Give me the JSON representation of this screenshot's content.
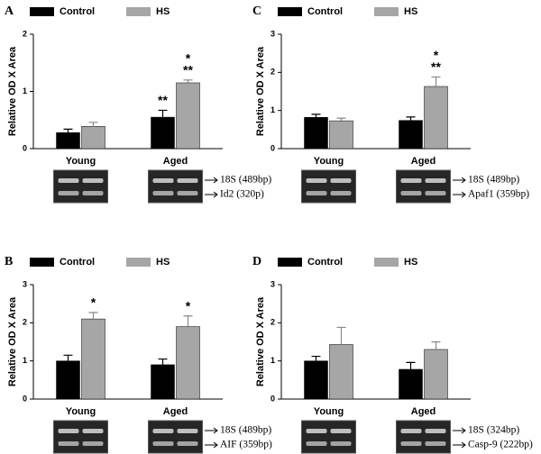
{
  "chart_data": [
    {
      "type": "bar",
      "panel": "A",
      "ylabel": "Relative OD X Area",
      "categories": [
        "Young",
        "Aged"
      ],
      "series": [
        {
          "name": "Control",
          "color": "#000000",
          "values": [
            0.28,
            0.55
          ],
          "errors": [
            0.06,
            0.12
          ],
          "annotations": [
            null,
            [
              "**"
            ]
          ]
        },
        {
          "name": "HS",
          "color": "#a6a6a6",
          "values": [
            0.39,
            1.15
          ],
          "errors": [
            0.07,
            0.05
          ],
          "annotations": [
            null,
            [
              "*",
              "**"
            ]
          ]
        }
      ],
      "ylim": [
        0,
        2
      ],
      "yticks": [
        0,
        1,
        2
      ],
      "gel_labels": [
        "18S (489bp)",
        "Id2 (320p)"
      ]
    },
    {
      "type": "bar",
      "panel": "C",
      "ylabel": "Relative OD X Area",
      "categories": [
        "Young",
        "Aged"
      ],
      "series": [
        {
          "name": "Control",
          "color": "#000000",
          "values": [
            0.82,
            0.74
          ],
          "errors": [
            0.08,
            0.09
          ],
          "annotations": [
            null,
            null
          ]
        },
        {
          "name": "HS",
          "color": "#a6a6a6",
          "values": [
            0.73,
            1.63
          ],
          "errors": [
            0.07,
            0.25
          ],
          "annotations": [
            null,
            [
              "*",
              "**"
            ]
          ]
        }
      ],
      "ylim": [
        0,
        3
      ],
      "yticks": [
        0,
        1,
        2,
        3
      ],
      "gel_labels": [
        "18S (489bp)",
        "Apaf1 (359bp)"
      ]
    },
    {
      "type": "bar",
      "panel": "B",
      "ylabel": "Relative OD X Area",
      "categories": [
        "Young",
        "Aged"
      ],
      "series": [
        {
          "name": "Control",
          "color": "#000000",
          "values": [
            1.0,
            0.9
          ],
          "errors": [
            0.15,
            0.15
          ],
          "annotations": [
            null,
            null
          ]
        },
        {
          "name": "HS",
          "color": "#a6a6a6",
          "values": [
            2.1,
            1.9
          ],
          "errors": [
            0.17,
            0.28
          ],
          "annotations": [
            [
              "*"
            ],
            [
              "*"
            ]
          ]
        }
      ],
      "ylim": [
        0,
        3
      ],
      "yticks": [
        0,
        1,
        2,
        3
      ],
      "gel_labels": [
        "18S (489bp)",
        "AIF (359bp)"
      ]
    },
    {
      "type": "bar",
      "panel": "D",
      "ylabel": "Relative OD X Area",
      "categories": [
        "Young",
        "Aged"
      ],
      "series": [
        {
          "name": "Control",
          "color": "#000000",
          "values": [
            1.0,
            0.78
          ],
          "errors": [
            0.12,
            0.18
          ],
          "annotations": [
            null,
            null
          ]
        },
        {
          "name": "HS",
          "color": "#a6a6a6",
          "values": [
            1.43,
            1.3
          ],
          "errors": [
            0.45,
            0.2
          ],
          "annotations": [
            null,
            null
          ]
        }
      ],
      "ylim": [
        0,
        3
      ],
      "yticks": [
        0,
        1,
        2,
        3
      ],
      "gel_labels": [
        "18S (324bp)",
        "Casp-9 (222bp)"
      ]
    }
  ]
}
